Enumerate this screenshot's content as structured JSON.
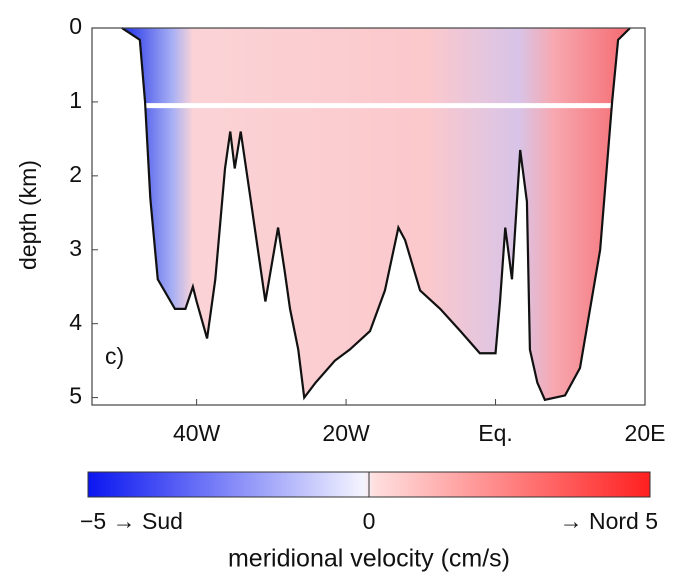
{
  "chart_data": {
    "type": "section",
    "ylabel": "depth (km)",
    "panel_label": "c)",
    "x": [
      -50,
      -47.6,
      -46.9,
      -46.2,
      -45.2,
      -42.9,
      -41.5,
      -40.5,
      -40,
      -38.6,
      -37.5,
      -36.2,
      -35.5,
      -34.9,
      -34.1,
      -32.8,
      -30.8,
      -29.1,
      -28.2,
      -27.5,
      -26.4,
      -25.6,
      -24.1,
      -21.5,
      -19.5,
      -16.8,
      -14.8,
      -13,
      -12.1,
      -10.1,
      -7.4,
      -4.7,
      -2.1,
      0,
      0.6,
      1.3,
      2.2,
      3.3,
      4.2,
      4.6,
      5.6,
      6.6,
      9.3,
      11.3,
      14,
      15.6,
      16.4,
      18
    ],
    "bathymetry": [
      0,
      0.16,
      1,
      2.3,
      3.4,
      3.8,
      3.8,
      3.5,
      3.7,
      4.2,
      3.4,
      1.9,
      1.4,
      1.9,
      1.4,
      2.3,
      3.7,
      2.7,
      3.3,
      3.8,
      4.35,
      5,
      4.8,
      4.5,
      4.35,
      4.1,
      3.55,
      2.7,
      2.87,
      3.55,
      3.8,
      4.1,
      4.4,
      4.4,
      3.7,
      2.7,
      3.4,
      1.65,
      2.35,
      4.35,
      4.8,
      5.03,
      4.97,
      4.6,
      3,
      1,
      0.16,
      0
    ],
    "line_color": "#111111",
    "xlim": [
      -54,
      20
    ],
    "xticks": [
      {
        "value": -40,
        "label": "40W"
      },
      {
        "value": -20,
        "label": "20W"
      },
      {
        "value": 0,
        "label": "Eq."
      },
      {
        "value": 20,
        "label": "20E"
      }
    ],
    "ylim": [
      0,
      5.1
    ],
    "yticks": [
      0,
      1,
      2,
      3,
      4,
      5
    ],
    "colorbar": {
      "label": "meridional velocity (cm/s)",
      "clim": [
        -5,
        5
      ],
      "colors": [
        "#0a16f0",
        "#f4f4ff",
        "#ffdede",
        "#ff2020"
      ],
      "ticks": [
        {
          "value": -5,
          "label": "−5 → Sud"
        },
        {
          "value": 0,
          "label": "0"
        },
        {
          "value": 5,
          "label": "→ Nord 5"
        }
      ]
    }
  }
}
